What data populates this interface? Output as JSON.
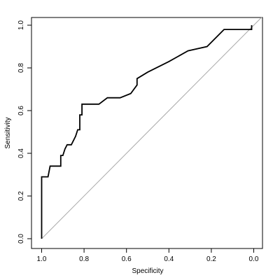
{
  "chart_data": {
    "type": "line",
    "xlabel": "Specificity",
    "ylabel": "Sensitivity",
    "xlim": [
      1.0,
      0.0
    ],
    "ylim": [
      0.0,
      1.0
    ],
    "x_reversed": true,
    "x_ticks": [
      "1.0",
      "0.8",
      "0.6",
      "0.4",
      "0.2",
      "0.0"
    ],
    "y_ticks": [
      "0.0",
      "0.2",
      "0.4",
      "0.6",
      "0.8",
      "1.0"
    ],
    "grid": false,
    "legend": "none",
    "colors": {
      "curve": "#000000",
      "diagonal": "#aaaaaa",
      "axes": "#000000"
    },
    "series": [
      {
        "x": [
          1.0,
          1.0,
          0.97,
          0.96,
          0.91,
          0.91,
          0.9,
          0.89,
          0.88,
          0.86,
          0.84,
          0.83,
          0.82,
          0.82,
          0.81,
          0.81,
          0.73,
          0.69,
          0.63,
          0.58,
          0.55,
          0.55,
          0.5,
          0.4,
          0.31,
          0.22,
          0.14,
          0.01,
          0.01
        ],
        "y": [
          0.0,
          0.29,
          0.29,
          0.34,
          0.34,
          0.39,
          0.39,
          0.42,
          0.44,
          0.44,
          0.48,
          0.51,
          0.51,
          0.58,
          0.58,
          0.63,
          0.63,
          0.66,
          0.66,
          0.68,
          0.72,
          0.75,
          0.78,
          0.83,
          0.88,
          0.9,
          0.98,
          0.98,
          1.0
        ]
      }
    ],
    "reference_line": {
      "x": [
        1.0,
        0.0
      ],
      "y": [
        0.0,
        1.0
      ]
    }
  }
}
